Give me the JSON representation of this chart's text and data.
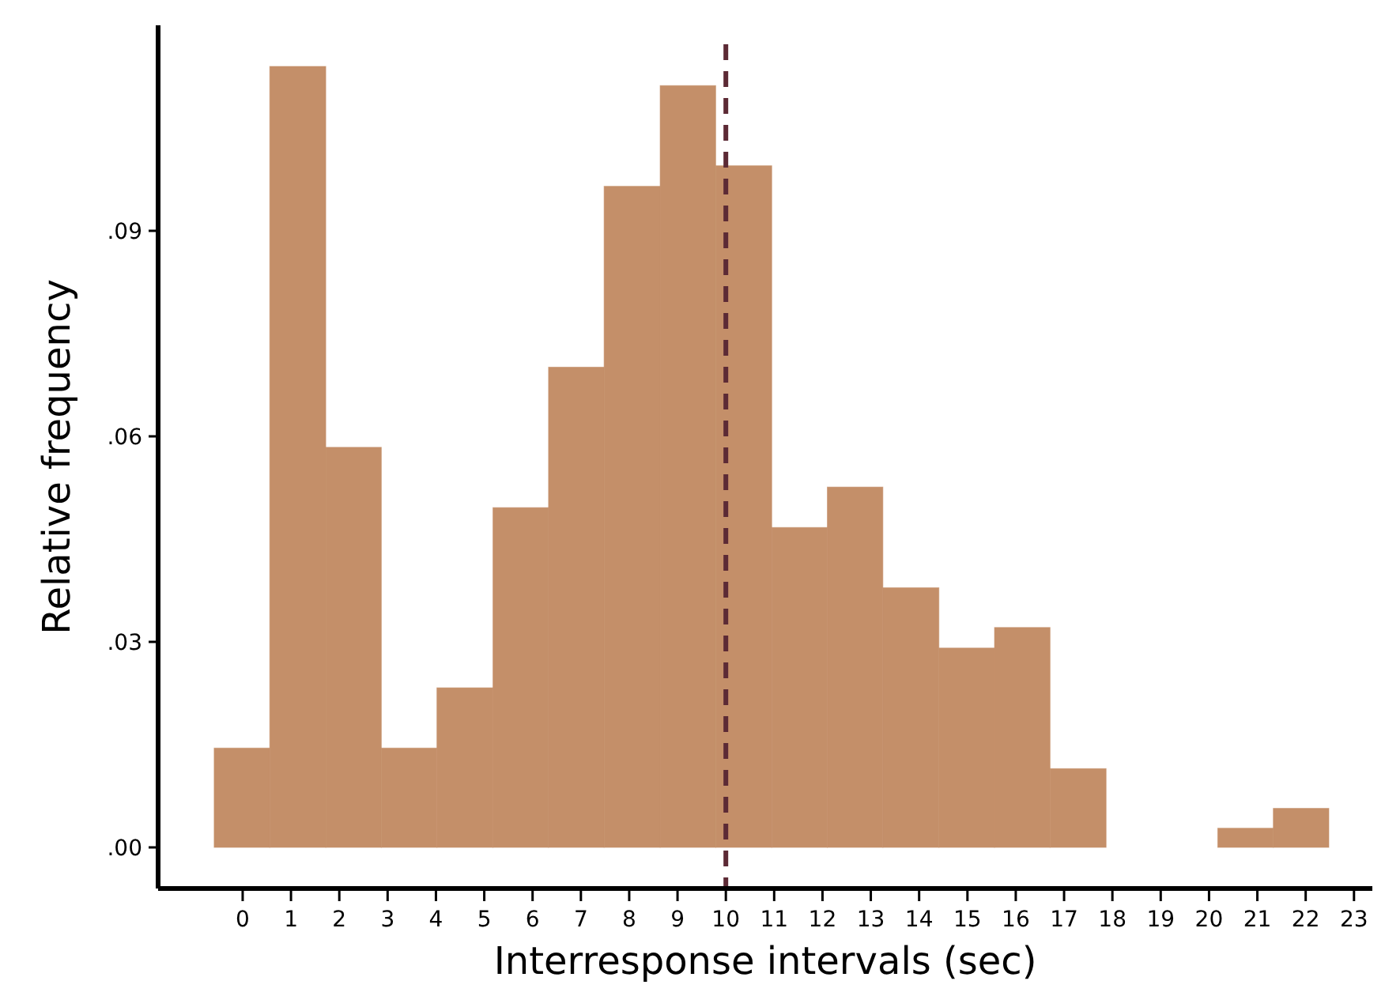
{
  "chart_data": {
    "type": "histogram",
    "xlabel": "Interresponse intervals (sec)",
    "ylabel": "Relative frequency",
    "bins": [
      -0.59,
      0.56,
      1.72,
      2.87,
      4.02,
      5.18,
      6.33,
      7.48,
      8.64,
      9.79,
      10.95,
      12.1,
      13.25,
      14.41,
      15.56,
      16.71,
      17.87,
      20.18,
      21.33,
      22.48
    ],
    "values": [
      0.0145,
      0.114,
      0.0584,
      0.0145,
      0.0233,
      0.0496,
      0.0701,
      0.0965,
      0.1112,
      0.0995,
      0.0467,
      0.0526,
      0.0379,
      0.0291,
      0.0321,
      0.0115,
      0,
      0.0028,
      0.0057
    ],
    "color": "#c48f69",
    "xlim": [
      -1.75,
      23.38
    ],
    "ylim": [
      -0.006,
      0.12
    ],
    "xticks": [
      0,
      1,
      2,
      3,
      4,
      5,
      6,
      7,
      8,
      9,
      10,
      11,
      12,
      13,
      14,
      15,
      16,
      17,
      18,
      19,
      20,
      21,
      22,
      23
    ],
    "yticks": [
      {
        "value": 0,
        "label": ".00"
      },
      {
        "value": 0.03,
        "label": ".03"
      },
      {
        "value": 0.06,
        "label": ".06"
      },
      {
        "value": 0.09,
        "label": ".09"
      }
    ],
    "ref_lines": [
      {
        "axis": "x",
        "value": 10,
        "color": "#5c2a35",
        "line_style": "dashed"
      }
    ],
    "grid": false
  }
}
